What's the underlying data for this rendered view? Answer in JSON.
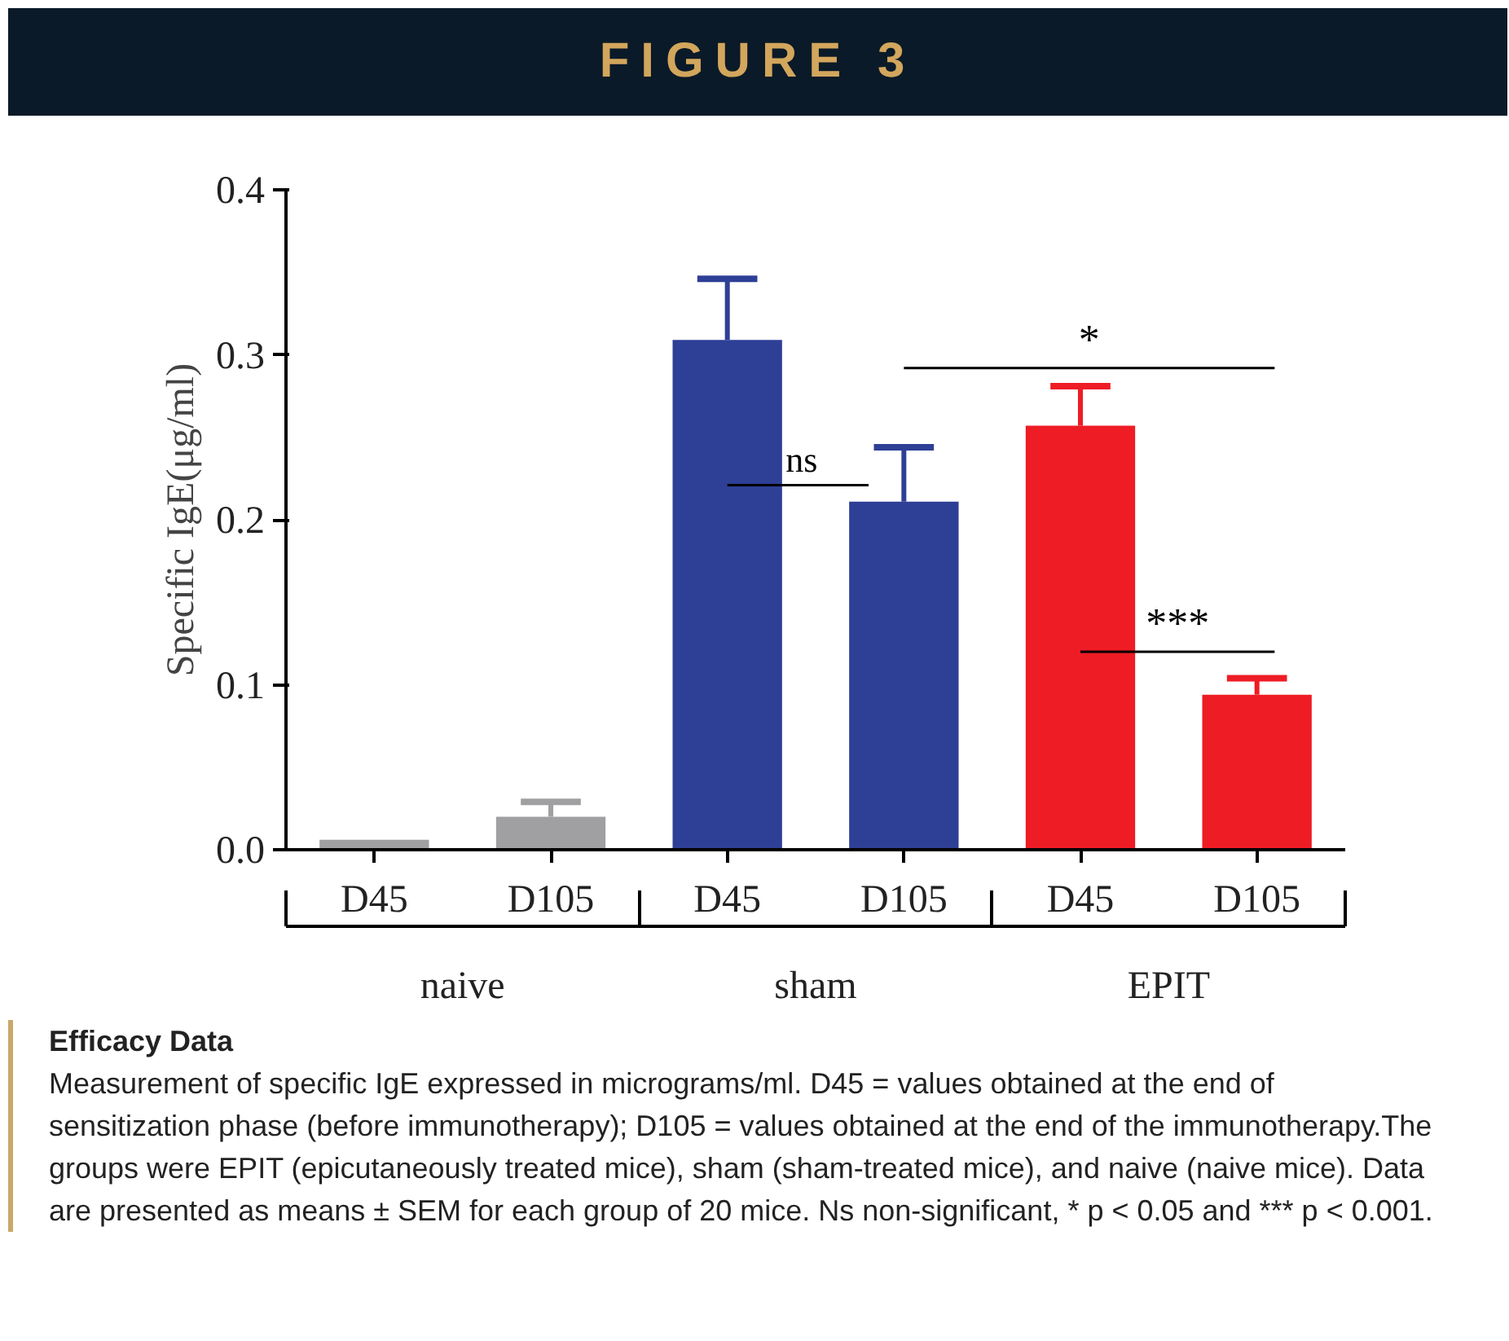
{
  "chart_data": {
    "type": "bar",
    "title": "FIGURE 3",
    "ylabel": "Specific IgE(μg/ml)",
    "categories": [
      "D45",
      "D105",
      "D45",
      "D105",
      "D45",
      "D105"
    ],
    "values": [
      0.006,
      0.02,
      0.309,
      0.211,
      0.257,
      0.094
    ],
    "colors": [
      "#a0a0a2",
      "#a0a0a2",
      "#2e3f96",
      "#2e3f96",
      "#ee1c25",
      "#ee1c25"
    ],
    "errors": [
      null,
      [
        0.02,
        0.029
      ],
      [
        0.309,
        0.346
      ],
      [
        0.211,
        0.244
      ],
      [
        0.257,
        0.281
      ],
      [
        0.094,
        0.104
      ]
    ],
    "ylim": [
      0,
      0.4
    ],
    "yticks": [
      {
        "value": 0,
        "label": "0.0"
      },
      0.1,
      0.2,
      0.3,
      0.4
    ],
    "grid": false,
    "annotations": [
      "ns",
      "*",
      "***",
      "naive",
      "sham",
      "EPIT",
      "Efficacy Data",
      "Measurement of specific IgE expressed in micrograms/ml. D45 = values obtained at the end of sensitization phase (before immunotherapy); D105 = values obtained at the end of the immunotherapy.The groups were EPIT (epicutaneously treated mice), sham (sham-treated mice), and naive (naive mice). Data are presented as means ± SEM for each group of 20 mice. Ns non-significant, * p < 0.05 and *** p < 0.001."
    ]
  }
}
